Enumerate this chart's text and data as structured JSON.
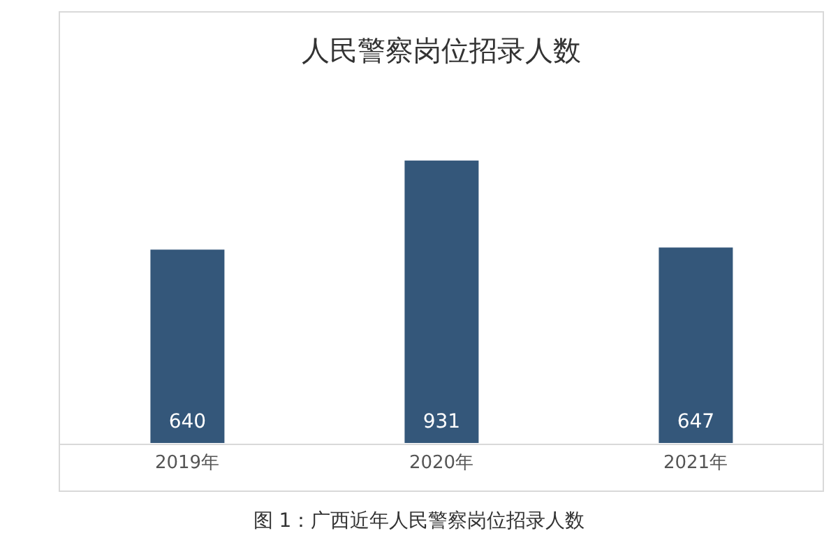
{
  "chart_data": {
    "type": "bar",
    "title": "人民警察岗位招录人数",
    "categories": [
      "2019年",
      "2020年",
      "2021年"
    ],
    "values": [
      640,
      931,
      647
    ],
    "color": "#34577a",
    "data_labels": true,
    "annotations": [
      "图 1：广西近年人民警察岗位招录人数"
    ]
  }
}
